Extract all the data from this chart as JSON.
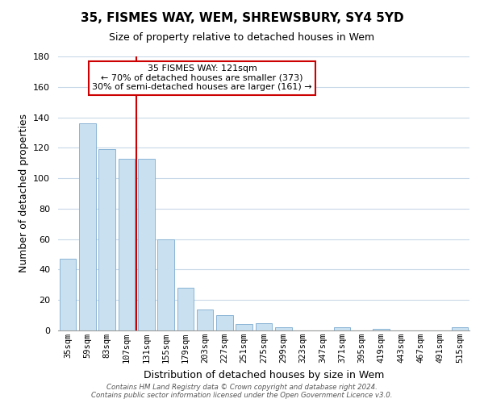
{
  "title": "35, FISMES WAY, WEM, SHREWSBURY, SY4 5YD",
  "subtitle": "Size of property relative to detached houses in Wem",
  "xlabel": "Distribution of detached houses by size in Wem",
  "ylabel": "Number of detached properties",
  "bar_labels": [
    "35sqm",
    "59sqm",
    "83sqm",
    "107sqm",
    "131sqm",
    "155sqm",
    "179sqm",
    "203sqm",
    "227sqm",
    "251sqm",
    "275sqm",
    "299sqm",
    "323sqm",
    "347sqm",
    "371sqm",
    "395sqm",
    "419sqm",
    "443sqm",
    "467sqm",
    "491sqm",
    "515sqm"
  ],
  "bar_values": [
    47,
    136,
    119,
    113,
    113,
    60,
    28,
    14,
    10,
    4,
    5,
    2,
    0,
    0,
    2,
    0,
    1,
    0,
    0,
    0,
    2
  ],
  "bar_color": "#c9e0f0",
  "bar_edge_color": "#8ab4d4",
  "vline_index": 4,
  "vline_color": "#cc0000",
  "ylim": [
    0,
    180
  ],
  "yticks": [
    0,
    20,
    40,
    60,
    80,
    100,
    120,
    140,
    160,
    180
  ],
  "annotation_text": "35 FISMES WAY: 121sqm\n← 70% of detached houses are smaller (373)\n30% of semi-detached houses are larger (161) →",
  "annotation_box_color": "#ffffff",
  "annotation_box_edge_color": "#cc0000",
  "footer_line1": "Contains HM Land Registry data © Crown copyright and database right 2024.",
  "footer_line2": "Contains public sector information licensed under the Open Government Licence v3.0.",
  "background_color": "#ffffff",
  "grid_color": "#c8d8e8",
  "title_fontsize": 11,
  "subtitle_fontsize": 9,
  "ylabel_fontsize": 9,
  "xlabel_fontsize": 9
}
